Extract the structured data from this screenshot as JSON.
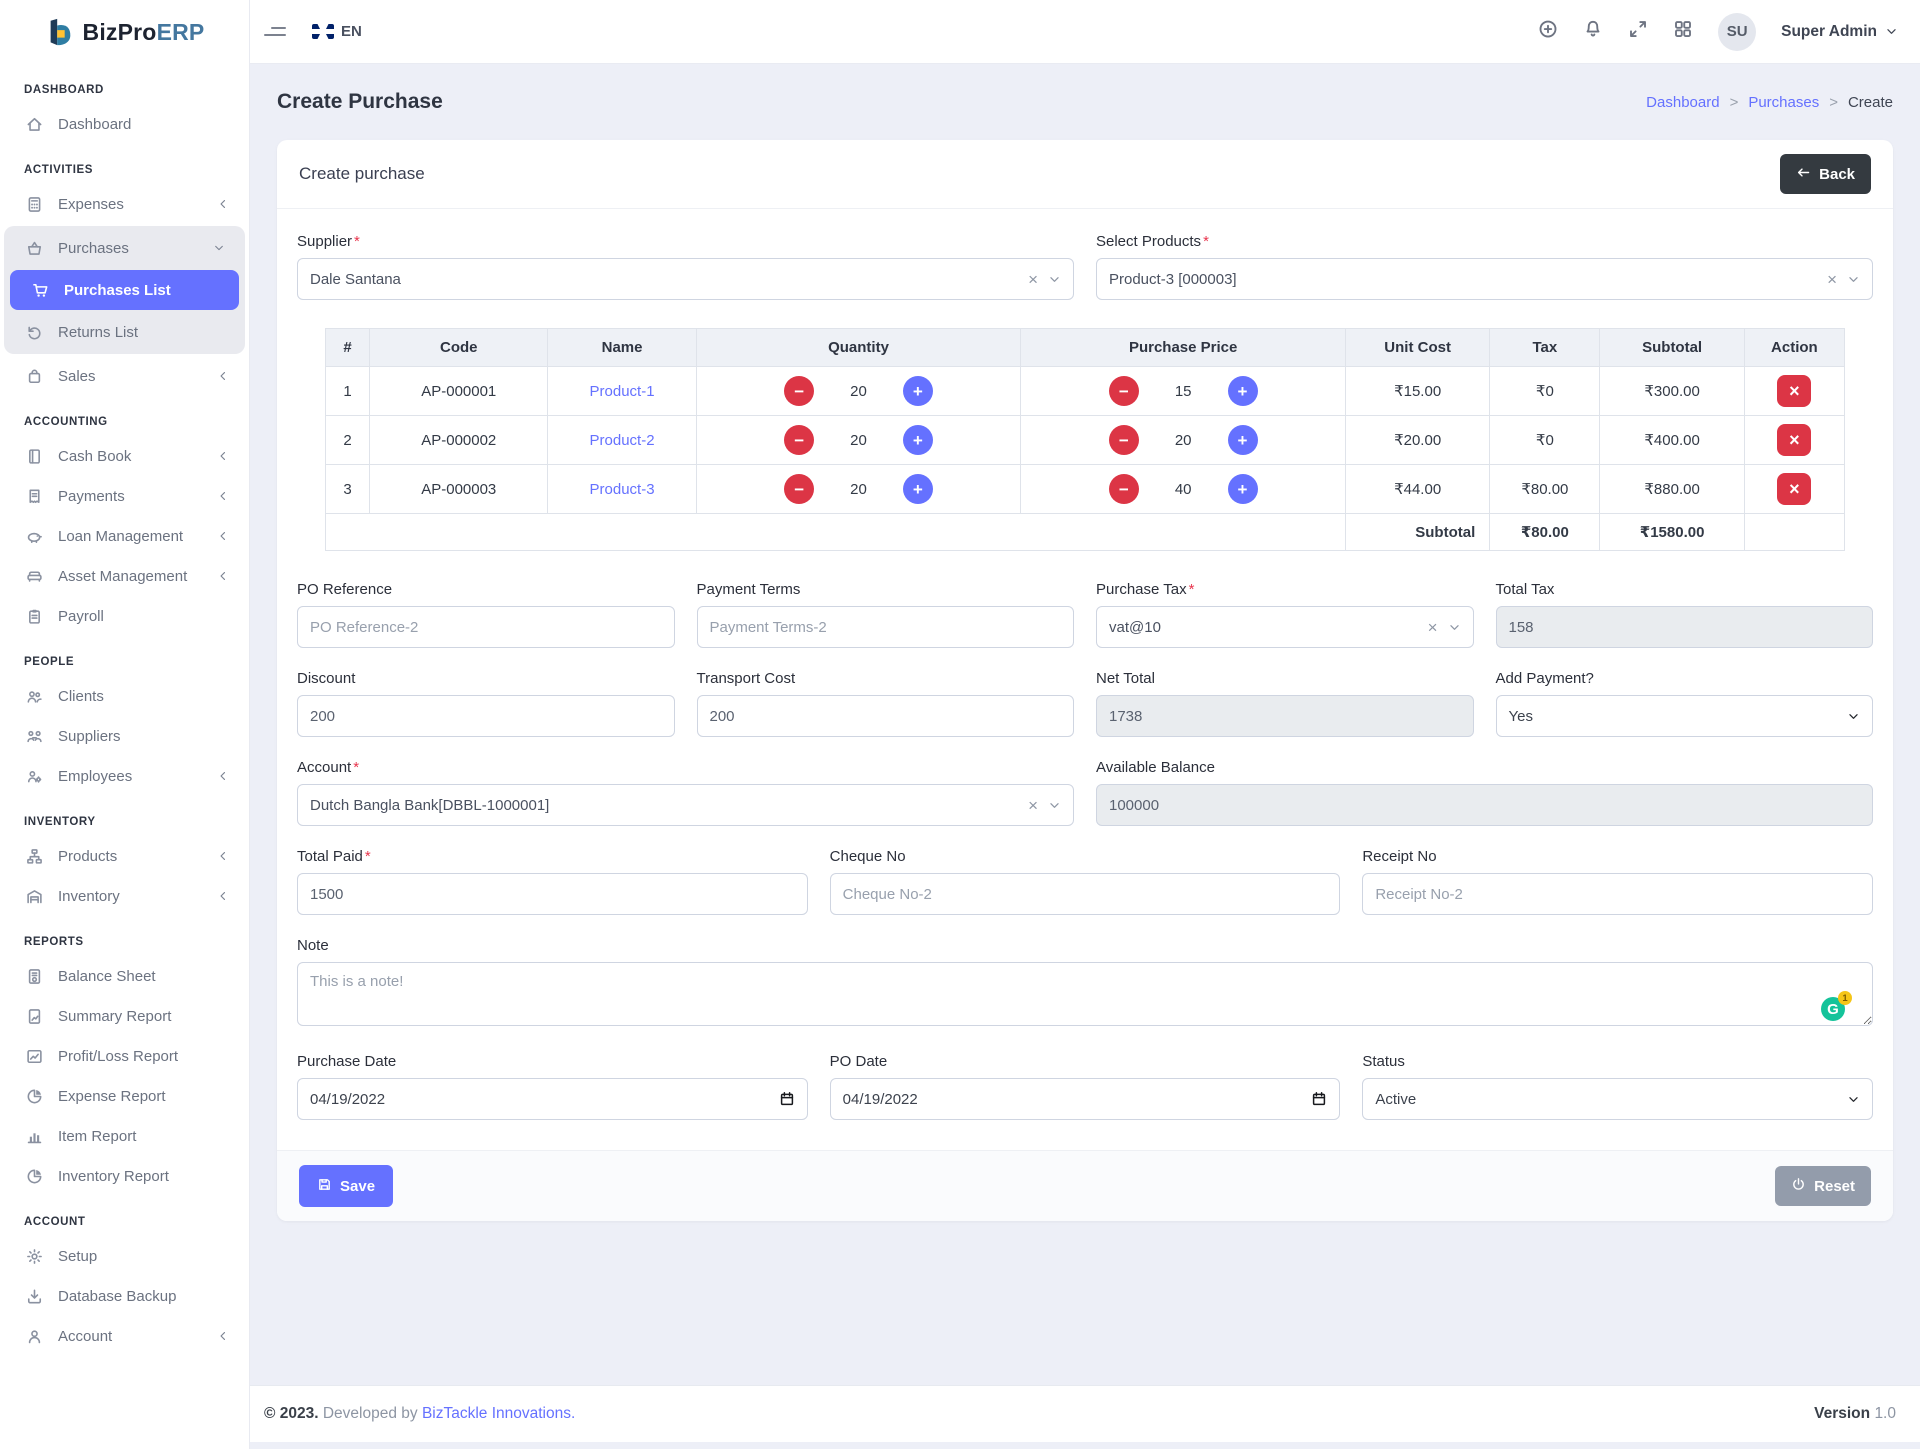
{
  "brand": {
    "name_primary": "BizPro",
    "name_secondary": "ERP"
  },
  "topbar": {
    "language": "EN",
    "icons": [
      "plus-circle",
      "bell",
      "expand",
      "grid"
    ],
    "user_initials": "SU",
    "user_name": "Super Admin"
  },
  "sidebar": {
    "sections": [
      {
        "title": "DASHBOARD",
        "items": [
          {
            "label": "Dashboard",
            "icon": "home"
          }
        ]
      },
      {
        "title": "ACTIVITIES",
        "items": [
          {
            "label": "Expenses",
            "icon": "calculator",
            "chevron": "left"
          },
          {
            "label": "Purchases",
            "icon": "basket",
            "chevron": "down",
            "expanded": true,
            "children": [
              {
                "label": "Purchases List",
                "icon": "cart",
                "active": true
              },
              {
                "label": "Returns List",
                "icon": "undo"
              }
            ]
          },
          {
            "label": "Sales",
            "icon": "bag",
            "chevron": "left"
          }
        ]
      },
      {
        "title": "ACCOUNTING",
        "items": [
          {
            "label": "Cash Book",
            "icon": "book",
            "chevron": "left"
          },
          {
            "label": "Payments",
            "icon": "receipt",
            "chevron": "left"
          },
          {
            "label": "Loan Management",
            "icon": "piggy-bank",
            "chevron": "left"
          },
          {
            "label": "Asset Management",
            "icon": "couch",
            "chevron": "left"
          },
          {
            "label": "Payroll",
            "icon": "clipboard"
          }
        ]
      },
      {
        "title": "PEOPLE",
        "items": [
          {
            "label": "Clients",
            "icon": "users"
          },
          {
            "label": "Suppliers",
            "icon": "handshake"
          },
          {
            "label": "Employees",
            "icon": "user-group-gear",
            "chevron": "left"
          }
        ]
      },
      {
        "title": "INVENTORY",
        "items": [
          {
            "label": "Products",
            "icon": "sitemap",
            "chevron": "left"
          },
          {
            "label": "Inventory",
            "icon": "warehouse",
            "chevron": "left"
          }
        ]
      },
      {
        "title": "REPORTS",
        "items": [
          {
            "label": "Balance Sheet",
            "icon": "file-invoice"
          },
          {
            "label": "Summary Report",
            "icon": "file-chart"
          },
          {
            "label": "Profit/Loss Report",
            "icon": "chart-line"
          },
          {
            "label": "Expense Report",
            "icon": "chart-pie"
          },
          {
            "label": "Item Report",
            "icon": "chart-bar"
          },
          {
            "label": "Inventory Report",
            "icon": "chart-pie"
          }
        ]
      },
      {
        "title": "ACCOUNT",
        "items": [
          {
            "label": "Setup",
            "icon": "gears"
          },
          {
            "label": "Database Backup",
            "icon": "download"
          },
          {
            "label": "Account",
            "icon": "user",
            "chevron": "left"
          }
        ]
      }
    ]
  },
  "page": {
    "title": "Create Purchase",
    "breadcrumb": {
      "separator": ">",
      "items": [
        {
          "label": "Dashboard",
          "link": true
        },
        {
          "label": "Purchases",
          "link": true
        },
        {
          "label": "Create",
          "link": false
        }
      ]
    }
  },
  "card": {
    "title": "Create purchase",
    "back_label": "Back"
  },
  "form": {
    "required_mark": "*",
    "supplier": {
      "label": "Supplier",
      "value": "Dale Santana"
    },
    "products": {
      "label": "Select Products",
      "value": "Product-3 [000003]"
    },
    "po_reference": {
      "label": "PO Reference",
      "placeholder": "PO Reference-2"
    },
    "payment_terms": {
      "label": "Payment Terms",
      "placeholder": "Payment Terms-2"
    },
    "purchase_tax": {
      "label": "Purchase Tax",
      "value": "vat@10"
    },
    "total_tax": {
      "label": "Total Tax",
      "value": "158"
    },
    "discount": {
      "label": "Discount",
      "value": "200"
    },
    "transport_cost": {
      "label": "Transport Cost",
      "value": "200"
    },
    "net_total": {
      "label": "Net Total",
      "value": "1738"
    },
    "add_payment": {
      "label": "Add Payment?",
      "value": "Yes"
    },
    "account": {
      "label": "Account",
      "value": "Dutch Bangla Bank[DBBL-1000001]"
    },
    "available_balance": {
      "label": "Available Balance",
      "value": "100000"
    },
    "total_paid": {
      "label": "Total Paid",
      "value": "1500"
    },
    "cheque_no": {
      "label": "Cheque No",
      "placeholder": "Cheque No-2"
    },
    "receipt_no": {
      "label": "Receipt No",
      "placeholder": "Receipt No-2"
    },
    "note": {
      "label": "Note",
      "value": "This is a note!"
    },
    "purchase_date": {
      "label": "Purchase Date",
      "value": "04/19/2022"
    },
    "po_date": {
      "label": "PO Date",
      "value": "04/19/2022"
    },
    "status": {
      "label": "Status",
      "value": "Active"
    },
    "grammarly_badge": "1",
    "grammarly_letter": "G"
  },
  "table": {
    "headers": [
      "#",
      "Code",
      "Name",
      "Quantity",
      "Purchase Price",
      "Unit Cost",
      "Tax",
      "Subtotal",
      "Action"
    ],
    "rows": [
      {
        "index": "1",
        "code": "AP-000001",
        "name": "Product-1",
        "quantity": "20",
        "price": "15",
        "unit_cost": "₹15.00",
        "tax": "₹0",
        "subtotal": "₹300.00"
      },
      {
        "index": "2",
        "code": "AP-000002",
        "name": "Product-2",
        "quantity": "20",
        "price": "20",
        "unit_cost": "₹20.00",
        "tax": "₹0",
        "subtotal": "₹400.00"
      },
      {
        "index": "3",
        "code": "AP-000003",
        "name": "Product-3",
        "quantity": "20",
        "price": "40",
        "unit_cost": "₹44.00",
        "tax": "₹80.00",
        "subtotal": "₹880.00"
      }
    ],
    "subtotal_row": {
      "label": "Subtotal",
      "tax": "₹80.00",
      "subtotal": "₹1580.00"
    },
    "stepper": {
      "minus": "−",
      "plus": "+",
      "remove": "×"
    }
  },
  "actions": {
    "save": "Save",
    "reset": "Reset"
  },
  "footer": {
    "copyright": "© 2023.",
    "developed_by": "Developed by",
    "company": "BizTackle Innovations.",
    "version_label": "Version",
    "version": "1.0"
  },
  "colors": {
    "accent": "#6571ff",
    "danger": "#dc3545",
    "dark_button": "#343a40",
    "readonly_bg": "#e9ecef",
    "grammarly_green": "#15c39a",
    "logo_erp": "#44779f"
  }
}
